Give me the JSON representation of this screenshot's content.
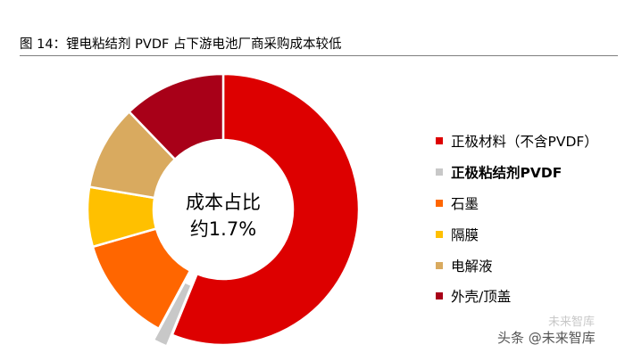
{
  "figure": {
    "title": "图  14：锂电粘结剂 PVDF 占下游电池厂商采购成本较低"
  },
  "chart_data": {
    "type": "pie",
    "title": "图  14：锂电粘结剂 PVDF 占下游电池厂商采购成本较低",
    "center_label": [
      "成本占比",
      "约1.7%"
    ],
    "highlighted": "正极粘结剂PVDF",
    "legend_position": "right",
    "slices": [
      {
        "label": "正极材料（不含PVDF）",
        "value": 55.3,
        "color": "#DD0000"
      },
      {
        "label": "正极粘结剂PVDF",
        "value": 1.7,
        "color": "#C8C8C8"
      },
      {
        "label": "石墨",
        "value": 12.5,
        "color": "#FF6600"
      },
      {
        "label": "隔膜",
        "value": 7.0,
        "color": "#FFC000"
      },
      {
        "label": "电解液",
        "value": 10.0,
        "color": "#D9AA5F"
      },
      {
        "label": "外壳/顶盖",
        "value": 12.0,
        "color": "#A80018"
      }
    ]
  },
  "watermark": {
    "main": "头条 @未来智库",
    "faint": "未来智库"
  }
}
